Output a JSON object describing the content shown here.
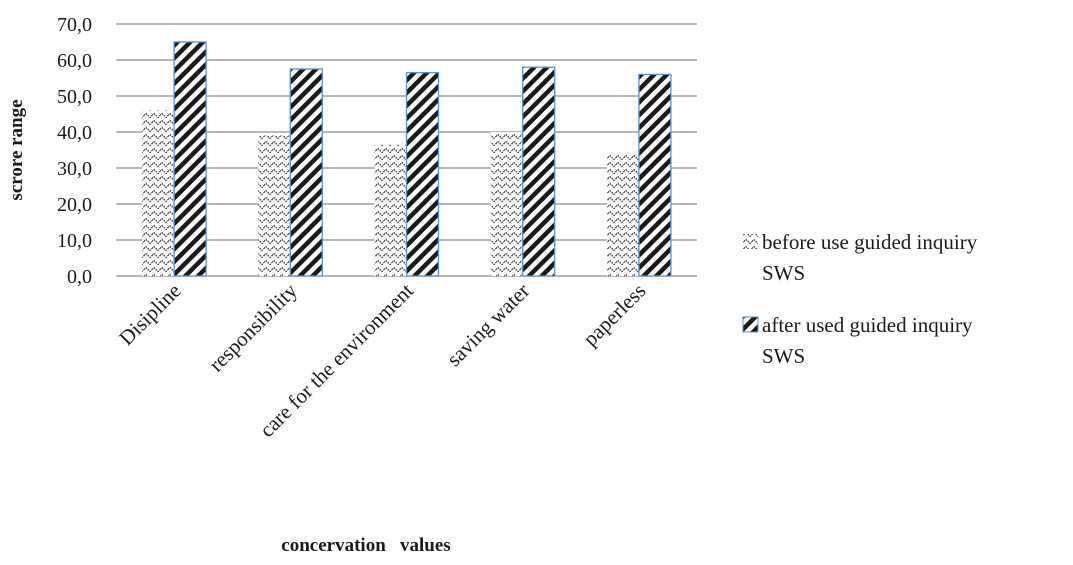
{
  "chart_data": {
    "type": "bar",
    "title": "",
    "xlabel": "concervation   values",
    "ylabel": "scrore range",
    "ylim": [
      0,
      70
    ],
    "ytick_step": 10,
    "yticks": [
      "0,0",
      "10,0",
      "20,0",
      "30,0",
      "40,0",
      "50,0",
      "60,0",
      "70,0"
    ],
    "categories": [
      "Disipline",
      "responsibility",
      "care for the environment",
      "saving water",
      "paperless"
    ],
    "series": [
      {
        "name": "before use guided inquiry SWS",
        "values": [
          46,
          39,
          36.5,
          40,
          34
        ],
        "pattern": "wavy-dots"
      },
      {
        "name": "after used guided inquiry SWS",
        "values": [
          65,
          57.5,
          56.5,
          58,
          56
        ],
        "pattern": "diagonal-hatch"
      }
    ],
    "legend": {
      "position": "right",
      "entries": [
        {
          "line1": "before use guided inquiry",
          "line2": "SWS"
        },
        {
          "line1": "after used guided inquiry",
          "line2": "SWS"
        }
      ]
    },
    "grid": true,
    "colors": {
      "grid": "#8c8c8c",
      "bar_border": "#5b8fc9",
      "ink": "#1a1a1a"
    }
  }
}
